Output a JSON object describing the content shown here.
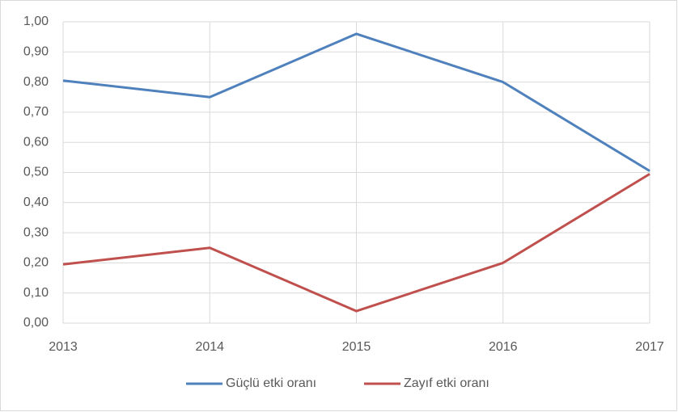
{
  "chart_data": {
    "type": "line",
    "x": [
      2013,
      2014,
      2015,
      2016,
      2017
    ],
    "xlim": [
      2013,
      2017
    ],
    "xticks": [
      2013,
      2014,
      2015,
      2016,
      2017
    ],
    "ylim": [
      0,
      1
    ],
    "yticks": [
      {
        "value": 0,
        "label": "0,00"
      },
      {
        "value": 0.1,
        "label": "0,10"
      },
      {
        "value": 0.2,
        "label": "0,20"
      },
      {
        "value": 0.3,
        "label": "0,30"
      },
      {
        "value": 0.4,
        "label": "0,40"
      },
      {
        "value": 0.5,
        "label": "0,50"
      },
      {
        "value": 0.6,
        "label": "0,60"
      },
      {
        "value": 0.7,
        "label": "0,70"
      },
      {
        "value": 0.8,
        "label": "0,80"
      },
      {
        "value": 0.9,
        "label": "0,90"
      },
      {
        "value": 1,
        "label": "1,00"
      }
    ],
    "grid": true,
    "legend": "bottom",
    "series": [
      {
        "name": "Güçlü etki oranı",
        "color": "#4f81bd",
        "values": [
          0.805,
          0.75,
          0.96,
          0.8,
          0.505
        ]
      },
      {
        "name": "Zayıf etki oranı",
        "color": "#c0504d",
        "values": [
          0.195,
          0.25,
          0.04,
          0.2,
          0.495
        ]
      }
    ]
  }
}
